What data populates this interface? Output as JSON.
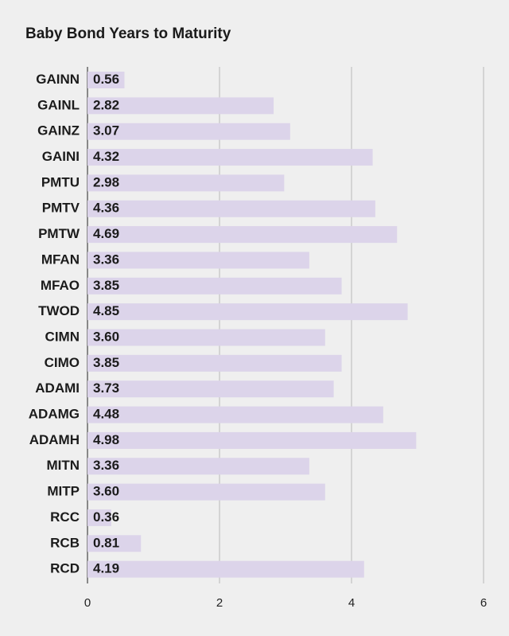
{
  "chart_data": {
    "type": "bar",
    "orientation": "horizontal",
    "title": "Baby Bond Years to Maturity",
    "xlabel": "",
    "ylabel": "",
    "categories": [
      "GAINN",
      "GAINL",
      "GAINZ",
      "GAINI",
      "PMTU",
      "PMTV",
      "PMTW",
      "MFAN",
      "MFAO",
      "TWOD",
      "CIMN",
      "CIMO",
      "ADAMI",
      "ADAMG",
      "ADAMH",
      "MITN",
      "MITP",
      "RCC",
      "RCB",
      "RCD"
    ],
    "values": [
      0.56,
      2.82,
      3.07,
      4.32,
      2.98,
      4.36,
      4.69,
      3.36,
      3.85,
      4.85,
      3.6,
      3.85,
      3.73,
      4.48,
      4.98,
      3.36,
      3.6,
      0.36,
      0.81,
      4.19
    ],
    "value_labels": [
      "0.56",
      "2.82",
      "3.07",
      "4.32",
      "2.98",
      "4.36",
      "4.69",
      "3.36",
      "3.85",
      "4.85",
      "3.60",
      "3.85",
      "3.73",
      "4.48",
      "4.98",
      "3.36",
      "3.60",
      "0.36",
      "0.81",
      "4.19"
    ],
    "xlim": [
      0,
      6
    ],
    "xticks": [
      0,
      2,
      4,
      6
    ],
    "xtick_labels": [
      "0",
      "2",
      "4",
      "6"
    ],
    "grid": "vertical",
    "legend": "none",
    "colors": {
      "background": "#efefef",
      "bar": "#dcd4ea",
      "gridline": "#b8b8b8",
      "text": "#1b1b1b"
    }
  }
}
